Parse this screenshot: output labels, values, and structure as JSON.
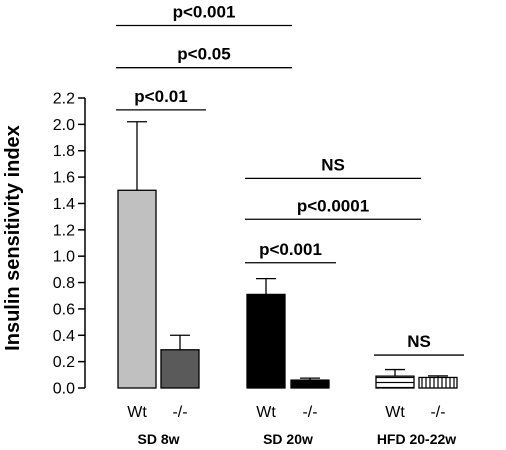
{
  "chart_data": {
    "type": "bar",
    "title": "",
    "ylabel": "Insulin sensitivity index",
    "ylim": [
      0,
      2.2
    ],
    "yticks": [
      "0.0",
      "0.2",
      "0.4",
      "0.6",
      "0.8",
      "1.0",
      "1.2",
      "1.4",
      "1.6",
      "1.8",
      "2.0",
      "2.2"
    ],
    "grid": false,
    "groups": [
      {
        "label": "SD 8w",
        "bars": [
          {
            "label": "Wt",
            "value": 1.5,
            "error": 0.52,
            "fill": "#c0c0c0",
            "pattern": "solid"
          },
          {
            "label": "-/-",
            "value": 0.29,
            "error": 0.11,
            "fill": "#5a5a5a",
            "pattern": "solid"
          }
        ]
      },
      {
        "label": "SD 20w",
        "bars": [
          {
            "label": "Wt",
            "value": 0.71,
            "error": 0.12,
            "fill": "#000000",
            "pattern": "solid"
          },
          {
            "label": "-/-",
            "value": 0.06,
            "error": 0.015,
            "fill": "#000000",
            "pattern": "solid"
          }
        ]
      },
      {
        "label": "HFD 20-22w",
        "bars": [
          {
            "label": "Wt",
            "value": 0.09,
            "error": 0.05,
            "fill": "#ffffff",
            "pattern": "horizontal-stripes"
          },
          {
            "label": "-/-",
            "value": 0.08,
            "error": 0.012,
            "fill": "#ffffff",
            "pattern": "vertical-stripes"
          }
        ]
      }
    ],
    "annotations": [
      {
        "text": "p<0.001",
        "from": "SD 8w",
        "to": "SD 20w",
        "y": 2.75
      },
      {
        "text": "p<0.05",
        "from": "SD 8w",
        "to": "SD 20w",
        "y": 2.43
      },
      {
        "text": "p<0.01",
        "from": "SD 8w",
        "to": "SD 8w",
        "y": 2.11
      },
      {
        "text": "NS",
        "from": "SD 20w",
        "to": "HFD 20-22w",
        "y": 1.59
      },
      {
        "text": "p<0.0001",
        "from": "SD 20w",
        "to": "HFD 20-22w",
        "y": 1.28
      },
      {
        "text": "p<0.001",
        "from": "SD 20w",
        "to": "SD 20w",
        "y": 0.95
      },
      {
        "text": "NS",
        "from": "HFD 20-22w",
        "to": "HFD 20-22w",
        "y": 0.25
      }
    ]
  }
}
